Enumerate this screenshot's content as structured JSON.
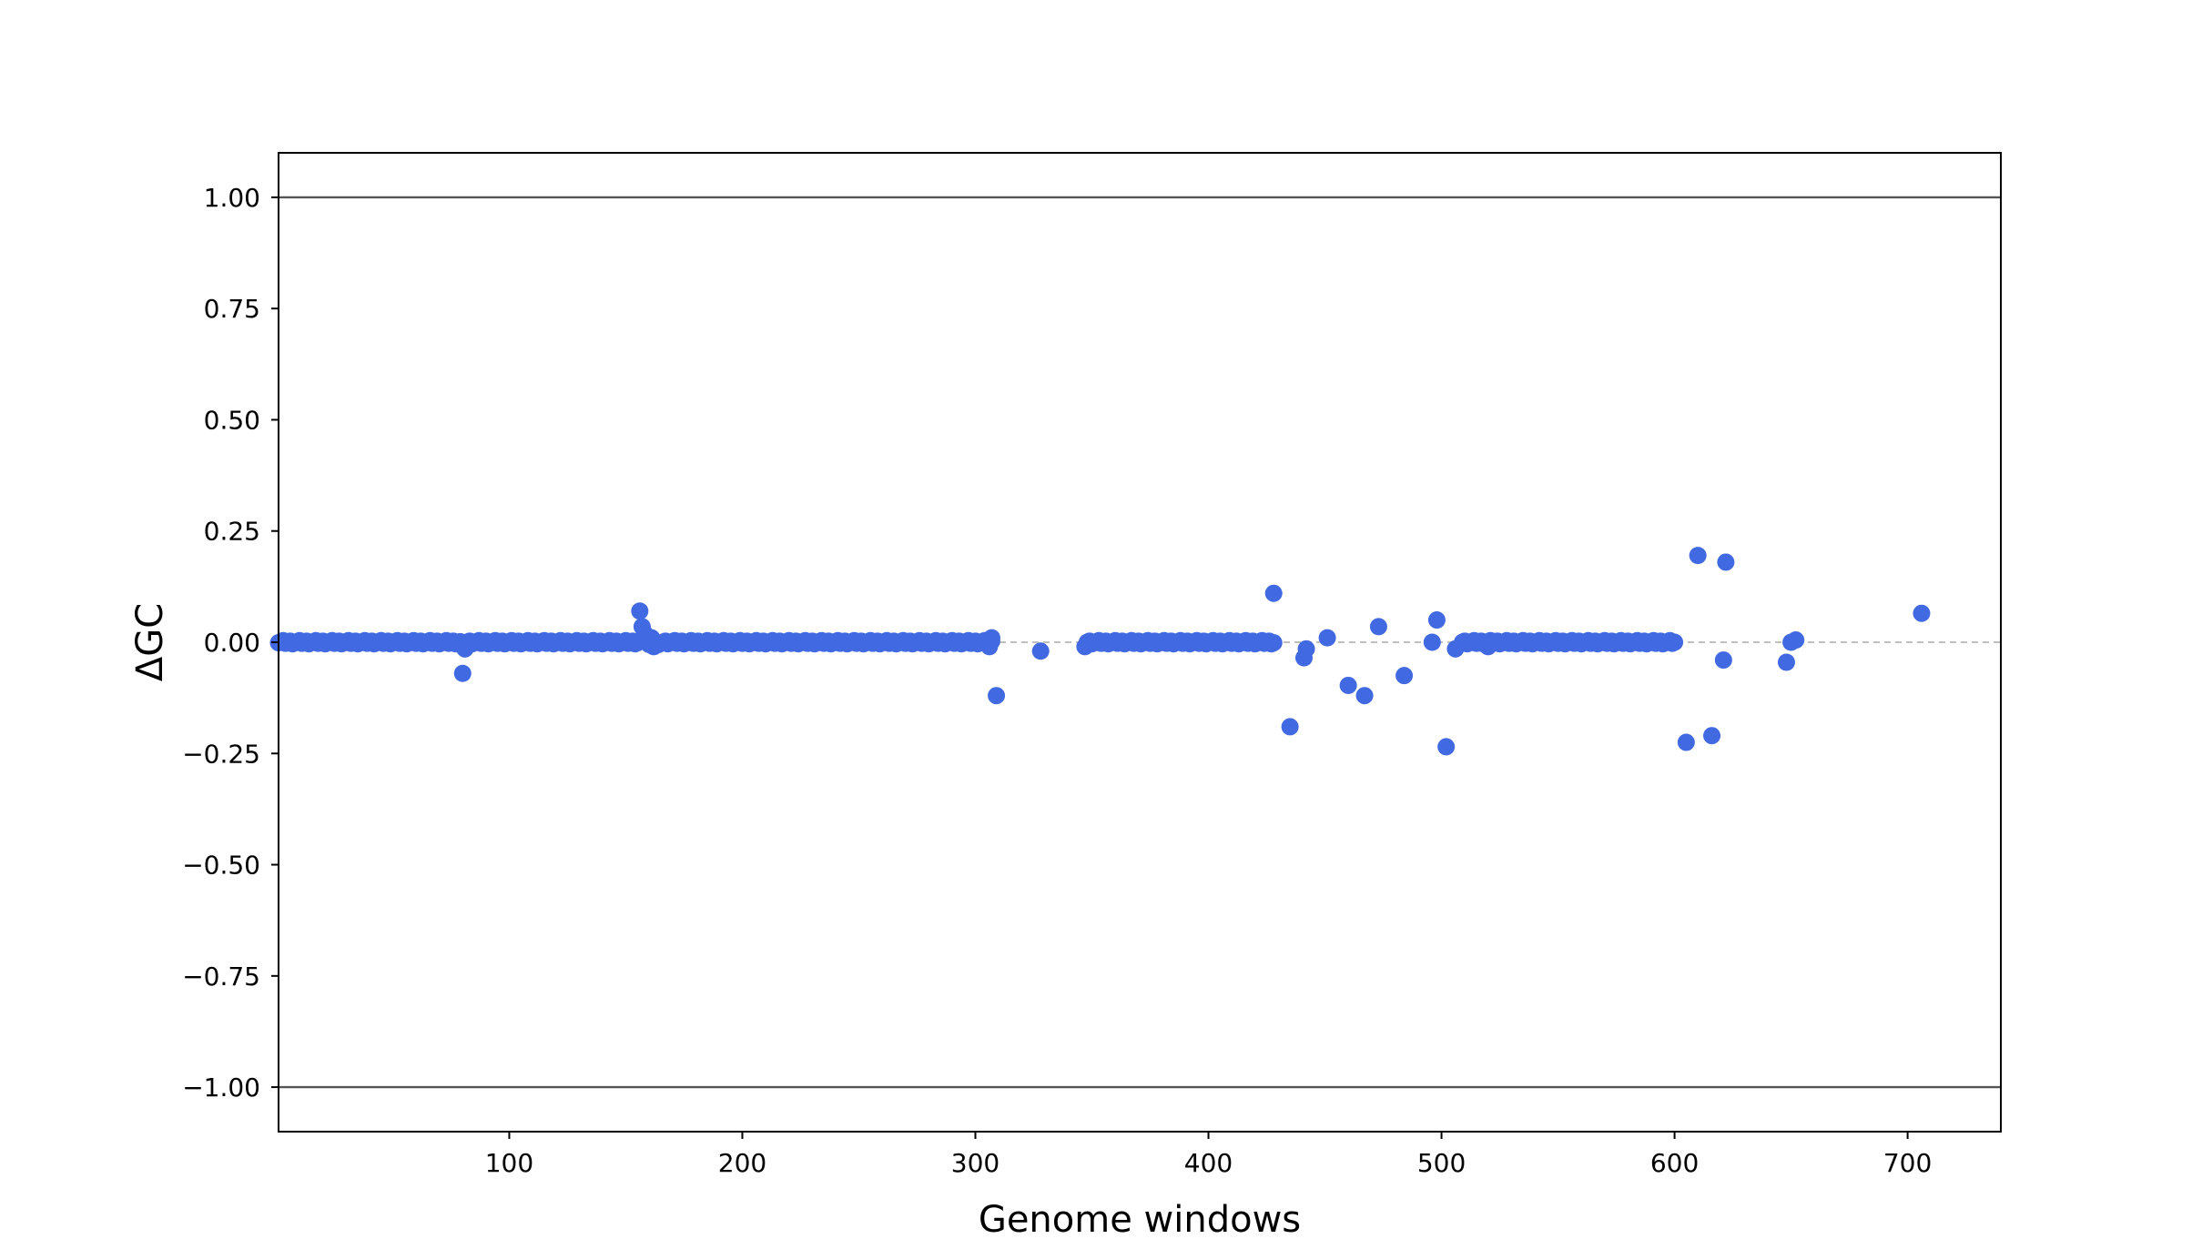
{
  "chart_data": {
    "type": "scatter",
    "xlabel": "Genome windows",
    "ylabel": "ΔGC",
    "xlim": [
      1,
      740
    ],
    "ylim": [
      -1.1,
      1.1
    ],
    "xticks": [
      {
        "value": 100,
        "label": "100"
      },
      {
        "value": 200,
        "label": "200"
      },
      {
        "value": 300,
        "label": "300"
      },
      {
        "value": 400,
        "label": "400"
      },
      {
        "value": 500,
        "label": "500"
      },
      {
        "value": 600,
        "label": "600"
      },
      {
        "value": 700,
        "label": "700"
      }
    ],
    "yticks": [
      {
        "value": 1.0,
        "label": "1.00"
      },
      {
        "value": 0.75,
        "label": "0.75"
      },
      {
        "value": 0.5,
        "label": "0.50"
      },
      {
        "value": 0.25,
        "label": "0.25"
      },
      {
        "value": 0.0,
        "label": "0.00"
      },
      {
        "value": -0.25,
        "label": "−0.25"
      },
      {
        "value": -0.5,
        "label": "−0.50"
      },
      {
        "value": -0.75,
        "label": "−0.75"
      },
      {
        "value": -1.0,
        "label": "−1.00"
      }
    ],
    "reference_lines": [
      {
        "y": 1.0,
        "style": "solid",
        "color": "#555555"
      },
      {
        "y": -1.0,
        "style": "solid",
        "color": "#555555"
      },
      {
        "y": 0.0,
        "style": "dashed",
        "color": "#aaaaaa"
      }
    ],
    "marker_color": "#4169e1",
    "grid": false,
    "near_zero_ranges": [
      [
        1,
        79
      ],
      [
        83,
        155
      ],
      [
        165,
        307
      ],
      [
        348,
        428
      ],
      [
        509,
        600
      ]
    ],
    "series": [
      {
        "points": [
          [
            80,
            -0.07
          ],
          [
            81,
            -0.015
          ],
          [
            82,
            0.0
          ],
          [
            156,
            0.07
          ],
          [
            157,
            0.035
          ],
          [
            158,
            0.02
          ],
          [
            159,
            0.005
          ],
          [
            160,
            -0.005
          ],
          [
            161,
            0.01
          ],
          [
            162,
            -0.01
          ],
          [
            163,
            0.0
          ],
          [
            164,
            -0.005
          ],
          [
            307,
            0.01
          ],
          [
            306,
            -0.01
          ],
          [
            309,
            -0.12
          ],
          [
            328,
            -0.02
          ],
          [
            347,
            -0.01
          ],
          [
            428,
            0.11
          ],
          [
            435,
            -0.19
          ],
          [
            441,
            -0.035
          ],
          [
            442,
            -0.015
          ],
          [
            451,
            0.01
          ],
          [
            460,
            -0.097
          ],
          [
            467,
            -0.12
          ],
          [
            473,
            0.035
          ],
          [
            484,
            -0.075
          ],
          [
            496,
            0.0
          ],
          [
            498,
            0.05
          ],
          [
            502,
            -0.235
          ],
          [
            506,
            -0.015
          ],
          [
            520,
            -0.01
          ],
          [
            605,
            -0.225
          ],
          [
            610,
            0.195
          ],
          [
            616,
            -0.21
          ],
          [
            621,
            -0.04
          ],
          [
            622,
            0.18
          ],
          [
            648,
            -0.045
          ],
          [
            650,
            0.0
          ],
          [
            652,
            0.005
          ],
          [
            706,
            0.065
          ]
        ]
      }
    ]
  }
}
